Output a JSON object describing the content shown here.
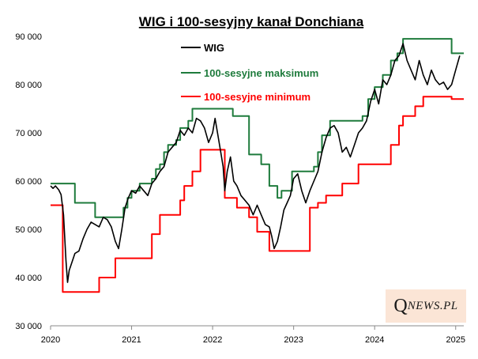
{
  "logo": {
    "first_letter": "Q",
    "rest": "NEWS.PL"
  },
  "chart_data": {
    "type": "line",
    "title": "WIG i 100-sesyjny kanał Donchiana",
    "xlabel": "",
    "ylabel": "",
    "xlim": [
      2020.0,
      2025.1
    ],
    "ylim": [
      30000,
      90000
    ],
    "x_ticks": [
      {
        "value": 2020,
        "label": "2020"
      },
      {
        "value": 2021,
        "label": "2021"
      },
      {
        "value": 2022,
        "label": "2022"
      },
      {
        "value": 2023,
        "label": "2023"
      },
      {
        "value": 2024,
        "label": "2024"
      },
      {
        "value": 2025,
        "label": "2025"
      }
    ],
    "y_ticks": [
      {
        "value": 30000,
        "label": "30 000"
      },
      {
        "value": 40000,
        "label": "40 000"
      },
      {
        "value": 50000,
        "label": "50 000"
      },
      {
        "value": 60000,
        "label": "60 000"
      },
      {
        "value": 70000,
        "label": "70 000"
      },
      {
        "value": 80000,
        "label": "80 000"
      },
      {
        "value": 90000,
        "label": "90 000"
      }
    ],
    "grid": false,
    "legend_position": "top-center",
    "series": [
      {
        "name": "WIG",
        "color": "#000000",
        "step": false,
        "points": [
          [
            2020.0,
            59000
          ],
          [
            2020.03,
            58500
          ],
          [
            2020.06,
            59000
          ],
          [
            2020.1,
            58200
          ],
          [
            2020.13,
            57200
          ],
          [
            2020.16,
            53000
          ],
          [
            2020.19,
            43500
          ],
          [
            2020.21,
            39000
          ],
          [
            2020.23,
            41500
          ],
          [
            2020.26,
            43000
          ],
          [
            2020.3,
            45000
          ],
          [
            2020.35,
            45500
          ],
          [
            2020.4,
            48000
          ],
          [
            2020.45,
            50000
          ],
          [
            2020.5,
            51500
          ],
          [
            2020.55,
            51000
          ],
          [
            2020.6,
            50500
          ],
          [
            2020.65,
            52500
          ],
          [
            2020.7,
            52000
          ],
          [
            2020.75,
            50500
          ],
          [
            2020.8,
            47500
          ],
          [
            2020.84,
            46000
          ],
          [
            2020.88,
            50000
          ],
          [
            2020.92,
            54500
          ],
          [
            2020.96,
            56500
          ],
          [
            2021.0,
            58000
          ],
          [
            2021.05,
            57500
          ],
          [
            2021.1,
            59000
          ],
          [
            2021.15,
            58000
          ],
          [
            2021.2,
            57000
          ],
          [
            2021.25,
            59500
          ],
          [
            2021.3,
            60500
          ],
          [
            2021.35,
            62000
          ],
          [
            2021.4,
            63000
          ],
          [
            2021.45,
            66000
          ],
          [
            2021.5,
            67000
          ],
          [
            2021.55,
            68000
          ],
          [
            2021.6,
            70500
          ],
          [
            2021.65,
            69500
          ],
          [
            2021.7,
            71000
          ],
          [
            2021.75,
            70000
          ],
          [
            2021.8,
            73000
          ],
          [
            2021.85,
            72500
          ],
          [
            2021.9,
            71000
          ],
          [
            2021.95,
            68000
          ],
          [
            2022.0,
            70000
          ],
          [
            2022.03,
            73000
          ],
          [
            2022.06,
            70000
          ],
          [
            2022.1,
            66000
          ],
          [
            2022.13,
            63000
          ],
          [
            2022.15,
            58000
          ],
          [
            2022.18,
            62000
          ],
          [
            2022.22,
            65000
          ],
          [
            2022.26,
            60000
          ],
          [
            2022.3,
            59000
          ],
          [
            2022.35,
            57000
          ],
          [
            2022.4,
            56000
          ],
          [
            2022.45,
            55000
          ],
          [
            2022.5,
            53000
          ],
          [
            2022.55,
            55000
          ],
          [
            2022.6,
            53000
          ],
          [
            2022.65,
            51000
          ],
          [
            2022.7,
            50500
          ],
          [
            2022.73,
            48500
          ],
          [
            2022.76,
            46000
          ],
          [
            2022.8,
            47500
          ],
          [
            2022.84,
            50500
          ],
          [
            2022.88,
            54000
          ],
          [
            2022.92,
            55500
          ],
          [
            2022.96,
            57000
          ],
          [
            2023.0,
            60500
          ],
          [
            2023.05,
            61500
          ],
          [
            2023.1,
            58000
          ],
          [
            2023.15,
            55500
          ],
          [
            2023.2,
            58000
          ],
          [
            2023.25,
            60000
          ],
          [
            2023.3,
            62000
          ],
          [
            2023.35,
            66000
          ],
          [
            2023.4,
            69000
          ],
          [
            2023.45,
            71000
          ],
          [
            2023.5,
            71500
          ],
          [
            2023.55,
            70000
          ],
          [
            2023.6,
            66000
          ],
          [
            2023.65,
            67000
          ],
          [
            2023.7,
            65000
          ],
          [
            2023.75,
            67500
          ],
          [
            2023.8,
            70000
          ],
          [
            2023.85,
            71000
          ],
          [
            2023.9,
            72500
          ],
          [
            2023.95,
            76500
          ],
          [
            2024.0,
            79000
          ],
          [
            2024.05,
            76000
          ],
          [
            2024.1,
            81000
          ],
          [
            2024.15,
            80000
          ],
          [
            2024.2,
            82000
          ],
          [
            2024.25,
            85000
          ],
          [
            2024.3,
            86000
          ],
          [
            2024.35,
            88500
          ],
          [
            2024.4,
            85000
          ],
          [
            2024.45,
            83000
          ],
          [
            2024.5,
            81000
          ],
          [
            2024.55,
            85000
          ],
          [
            2024.6,
            82000
          ],
          [
            2024.65,
            80000
          ],
          [
            2024.7,
            83000
          ],
          [
            2024.75,
            81000
          ],
          [
            2024.8,
            80000
          ],
          [
            2024.85,
            80500
          ],
          [
            2024.9,
            79000
          ],
          [
            2024.95,
            80000
          ],
          [
            2025.0,
            83000
          ],
          [
            2025.05,
            86000
          ]
        ]
      },
      {
        "name": "100-sesyjne maksimum",
        "color": "#1e7b3c",
        "step": true,
        "points": [
          [
            2020.0,
            59500
          ],
          [
            2020.3,
            59500
          ],
          [
            2020.3,
            55500
          ],
          [
            2020.55,
            55500
          ],
          [
            2020.55,
            52500
          ],
          [
            2020.9,
            52500
          ],
          [
            2020.9,
            54500
          ],
          [
            2020.95,
            54500
          ],
          [
            2020.95,
            56500
          ],
          [
            2021.0,
            56500
          ],
          [
            2021.0,
            58000
          ],
          [
            2021.1,
            58000
          ],
          [
            2021.1,
            59500
          ],
          [
            2021.25,
            59500
          ],
          [
            2021.25,
            60500
          ],
          [
            2021.3,
            60500
          ],
          [
            2021.3,
            62500
          ],
          [
            2021.35,
            62500
          ],
          [
            2021.35,
            63500
          ],
          [
            2021.4,
            63500
          ],
          [
            2021.4,
            66000
          ],
          [
            2021.45,
            66000
          ],
          [
            2021.45,
            67500
          ],
          [
            2021.55,
            67500
          ],
          [
            2021.55,
            68500
          ],
          [
            2021.6,
            68500
          ],
          [
            2021.6,
            71000
          ],
          [
            2021.7,
            71000
          ],
          [
            2021.7,
            72500
          ],
          [
            2021.75,
            72500
          ],
          [
            2021.75,
            75000
          ],
          [
            2022.25,
            75000
          ],
          [
            2022.25,
            73500
          ],
          [
            2022.45,
            73500
          ],
          [
            2022.45,
            65500
          ],
          [
            2022.6,
            65500
          ],
          [
            2022.6,
            63500
          ],
          [
            2022.7,
            63500
          ],
          [
            2022.7,
            59000
          ],
          [
            2022.8,
            59000
          ],
          [
            2022.8,
            56500
          ],
          [
            2022.85,
            56500
          ],
          [
            2022.85,
            58000
          ],
          [
            2022.98,
            58000
          ],
          [
            2022.98,
            62000
          ],
          [
            2023.25,
            62000
          ],
          [
            2023.25,
            63000
          ],
          [
            2023.3,
            63000
          ],
          [
            2023.3,
            66000
          ],
          [
            2023.35,
            66000
          ],
          [
            2023.35,
            69500
          ],
          [
            2023.45,
            69500
          ],
          [
            2023.45,
            72500
          ],
          [
            2023.85,
            72500
          ],
          [
            2023.85,
            73500
          ],
          [
            2023.92,
            73500
          ],
          [
            2023.92,
            77000
          ],
          [
            2024.0,
            77000
          ],
          [
            2024.0,
            79500
          ],
          [
            2024.1,
            79500
          ],
          [
            2024.1,
            82000
          ],
          [
            2024.2,
            82000
          ],
          [
            2024.2,
            85000
          ],
          [
            2024.28,
            85000
          ],
          [
            2024.28,
            86500
          ],
          [
            2024.35,
            86500
          ],
          [
            2024.35,
            89500
          ],
          [
            2024.95,
            89500
          ],
          [
            2024.95,
            86500
          ],
          [
            2025.1,
            86500
          ]
        ]
      },
      {
        "name": "100-sesyjne minimum",
        "color": "#ff0000",
        "step": true,
        "points": [
          [
            2020.0,
            55000
          ],
          [
            2020.15,
            55000
          ],
          [
            2020.15,
            37000
          ],
          [
            2020.6,
            37000
          ],
          [
            2020.6,
            40000
          ],
          [
            2020.8,
            40000
          ],
          [
            2020.8,
            44000
          ],
          [
            2021.25,
            44000
          ],
          [
            2021.25,
            49000
          ],
          [
            2021.35,
            49000
          ],
          [
            2021.35,
            53000
          ],
          [
            2021.6,
            53000
          ],
          [
            2021.6,
            56000
          ],
          [
            2021.65,
            56000
          ],
          [
            2021.65,
            59000
          ],
          [
            2021.75,
            59000
          ],
          [
            2021.75,
            62000
          ],
          [
            2021.85,
            62000
          ],
          [
            2021.85,
            66500
          ],
          [
            2022.15,
            66500
          ],
          [
            2022.15,
            56500
          ],
          [
            2022.3,
            56500
          ],
          [
            2022.3,
            54500
          ],
          [
            2022.45,
            54500
          ],
          [
            2022.45,
            52500
          ],
          [
            2022.55,
            52500
          ],
          [
            2022.55,
            49500
          ],
          [
            2022.7,
            49500
          ],
          [
            2022.7,
            45500
          ],
          [
            2023.2,
            45500
          ],
          [
            2023.2,
            54500
          ],
          [
            2023.3,
            54500
          ],
          [
            2023.3,
            55500
          ],
          [
            2023.4,
            55500
          ],
          [
            2023.4,
            57000
          ],
          [
            2023.6,
            57000
          ],
          [
            2023.6,
            59500
          ],
          [
            2023.8,
            59500
          ],
          [
            2023.8,
            63500
          ],
          [
            2024.2,
            63500
          ],
          [
            2024.2,
            67500
          ],
          [
            2024.3,
            67500
          ],
          [
            2024.3,
            71500
          ],
          [
            2024.35,
            71500
          ],
          [
            2024.35,
            73500
          ],
          [
            2024.5,
            73500
          ],
          [
            2024.5,
            75500
          ],
          [
            2024.6,
            75500
          ],
          [
            2024.6,
            77500
          ],
          [
            2024.95,
            77500
          ],
          [
            2024.95,
            77000
          ],
          [
            2025.1,
            77000
          ]
        ]
      }
    ]
  }
}
